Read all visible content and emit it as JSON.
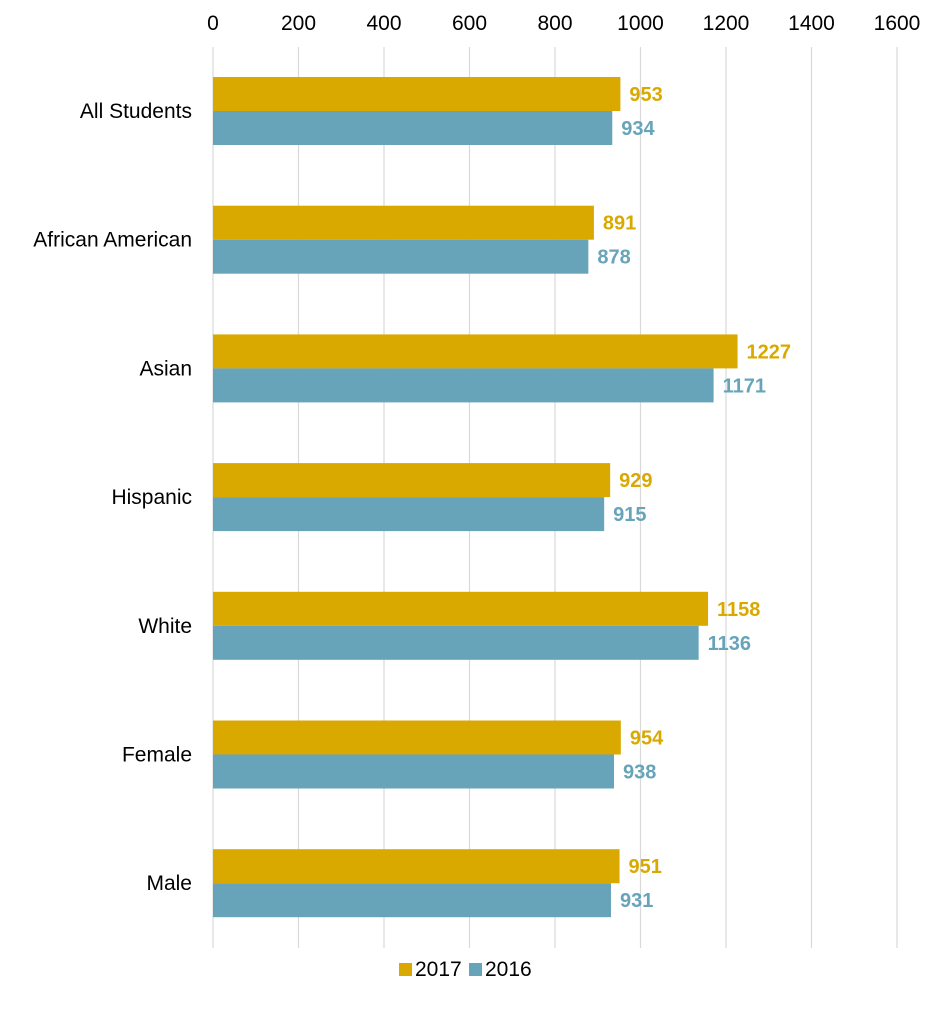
{
  "chart_data": {
    "type": "bar",
    "orientation": "horizontal",
    "title": "",
    "xlabel": "",
    "ylabel": "",
    "categories": [
      "All Students",
      "African American",
      "Asian",
      "Hispanic",
      "White",
      "Female",
      "Male"
    ],
    "series": [
      {
        "name": "2017",
        "color": "#D9A900",
        "values": [
          953,
          891,
          1227,
          929,
          1158,
          954,
          951
        ]
      },
      {
        "name": "2016",
        "color": "#67A4BA",
        "values": [
          934,
          878,
          1171,
          915,
          1136,
          938,
          931
        ]
      }
    ],
    "xlim": [
      0,
      1600
    ],
    "x_ticks": [
      "0",
      "200",
      "400",
      "600",
      "800",
      "1000",
      "1200",
      "1400",
      "1600"
    ],
    "x_axis_position": "top",
    "grid": true,
    "gridline_color": "#D9D9D9",
    "data_labels": true,
    "legend_position": "bottom"
  }
}
